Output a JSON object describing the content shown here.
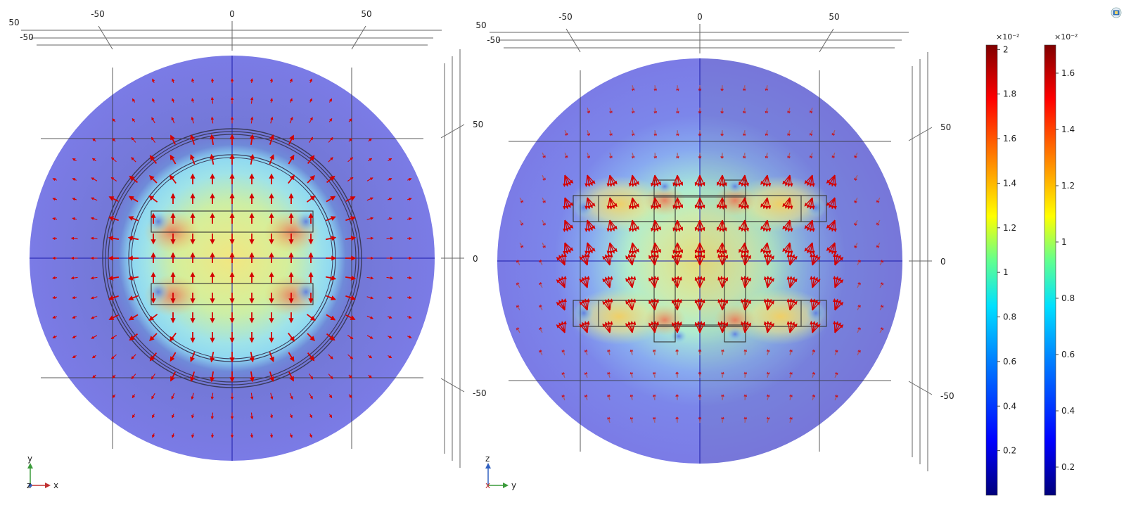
{
  "left_view": {
    "top_ticks": [
      "-50",
      "0",
      "50"
    ],
    "depth_ticks": [
      "50",
      "-50"
    ],
    "side_ticks": [
      "50",
      "0",
      "-50"
    ],
    "axes": {
      "vertical": "y",
      "horizontal": "x",
      "out": "z"
    }
  },
  "right_view": {
    "top_ticks": [
      "-50",
      "0",
      "50"
    ],
    "depth_ticks": [
      "50",
      "-50"
    ],
    "side_ticks": [
      "50",
      "0",
      "-50"
    ],
    "axes": {
      "vertical": "z",
      "horizontal": "y",
      "out": "x"
    }
  },
  "colorbars": [
    {
      "exponent": "×10⁻²",
      "labels": [
        "2",
        "1.8",
        "1.6",
        "1.4",
        "1.2",
        "1",
        "0.8",
        "0.6",
        "0.4",
        "0.2"
      ],
      "label_values": [
        2,
        1.8,
        1.6,
        1.4,
        1.2,
        1,
        0.8,
        0.6,
        0.4,
        0.2
      ],
      "range": [
        0.0,
        2.02
      ]
    },
    {
      "exponent": "×10⁻²",
      "labels": [
        "1.6",
        "1.4",
        "1.2",
        "1",
        "0.8",
        "0.6",
        "0.4",
        "0.2"
      ],
      "label_values": [
        1.6,
        1.4,
        1.2,
        1,
        0.8,
        0.6,
        0.4,
        0.2
      ],
      "range": [
        0.1,
        1.7
      ]
    }
  ],
  "colors": {
    "field_low": "#7b7be6",
    "field_high": "#e8e07a",
    "arrow": "#d40000",
    "axis_line": "#1a1aaa"
  },
  "toolbar": {
    "icon": "graphics-window-icon"
  }
}
